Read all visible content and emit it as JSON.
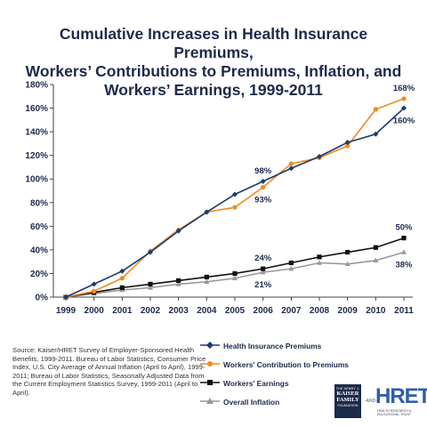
{
  "chart_data": {
    "type": "line",
    "title_lines": [
      "Cumulative Increases in Health Insurance Premiums,",
      "Workers’ Contributions to Premiums, Inflation, and",
      "Workers’ Earnings, 1999-2011"
    ],
    "x": [
      "1999",
      "2000",
      "2001",
      "2002",
      "2003",
      "2004",
      "2005",
      "2006",
      "2007",
      "2008",
      "2009",
      "2010",
      "2011"
    ],
    "ylim": [
      0,
      180
    ],
    "yticks": [
      0,
      20,
      40,
      60,
      80,
      100,
      120,
      140,
      160,
      180
    ],
    "ytick_labels": [
      "0%",
      "20%",
      "40%",
      "60%",
      "80%",
      "100%",
      "120%",
      "140%",
      "160%",
      "180%"
    ],
    "grid": false,
    "legend_position": "bottom",
    "series": [
      {
        "name": "Health Insurance Premiums",
        "color": "#1e3a6e",
        "marker": "diamond",
        "values": [
          0,
          11,
          22,
          38,
          56,
          72,
          87,
          98,
          109,
          119,
          131,
          138,
          160
        ]
      },
      {
        "name": "Workers' Contribution to Premiums",
        "color": "#f08a24",
        "marker": "circle",
        "values": [
          0,
          5,
          16,
          39,
          57,
          72,
          76,
          93,
          113,
          118,
          128,
          159,
          168
        ]
      },
      {
        "name": "Workers' Earnings",
        "color": "#111111",
        "marker": "square",
        "values": [
          0,
          4,
          8,
          11,
          14,
          17,
          20,
          24,
          29,
          34,
          38,
          42,
          50
        ]
      },
      {
        "name": "Overall Inflation",
        "color": "#999999",
        "marker": "triangle",
        "values": [
          0,
          3,
          6,
          8,
          11,
          13,
          16,
          21,
          24,
          29,
          28,
          31,
          38
        ]
      }
    ],
    "annotations": [
      {
        "text": "168%",
        "x": "2011",
        "series": 1,
        "placement": "above"
      },
      {
        "text": "160%",
        "x": "2011",
        "series": 0,
        "placement": "below"
      },
      {
        "text": "98%",
        "x": "2006",
        "series": 0,
        "placement": "above"
      },
      {
        "text": "93%",
        "x": "2006",
        "series": 1,
        "placement": "below"
      },
      {
        "text": "50%",
        "x": "2011",
        "series": 2,
        "placement": "above"
      },
      {
        "text": "38%",
        "x": "2011",
        "series": 3,
        "placement": "below"
      },
      {
        "text": "24%",
        "x": "2006",
        "series": 2,
        "placement": "above"
      },
      {
        "text": "21%",
        "x": "2006",
        "series": 3,
        "placement": "below"
      }
    ]
  },
  "source": "Source:  Kaiser/HRET Survey of Employer-Sponsored Health Benefits, 1999-2011.  Bureau of Labor Statistics, Consumer Price Index, U.S. City Average of Annual Inflation (April to April), 1999-2011; Bureau of Labor Statistics, Seasonally Adjusted Data from the Current Employment Statistics Survey, 1999-2011 (April to April).",
  "logos": {
    "kff_top": "THE HENRY J.",
    "kff_name_1": "KAISER",
    "kff_name_2": "FAMILY",
    "kff_bottom": "FOUNDATION",
    "and": "-AND-",
    "hret": "HRET",
    "hret_sub": "HEALTH RESEARCH & EDUCATIONAL TRUST"
  }
}
